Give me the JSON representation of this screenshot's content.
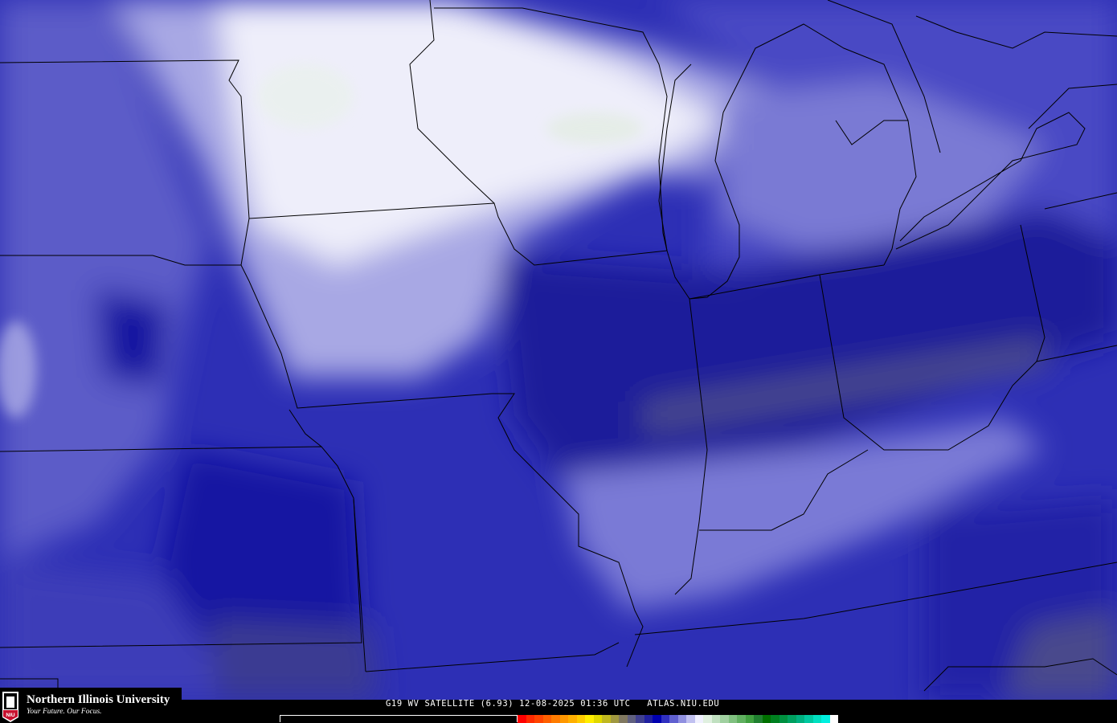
{
  "product": {
    "caption": "G19 WV SATELLITE (6.93) 12-08-2025 01:36 UTC   ATLAS.NIU.EDU"
  },
  "logo": {
    "name": "Northern Illinois University",
    "tagline": "Your Future. Our Focus.",
    "seal_text": "NIU"
  },
  "colorbar": {
    "colors": [
      "#ff0000",
      "#ff2a00",
      "#ff4400",
      "#ff6000",
      "#ff7c00",
      "#ff9800",
      "#ffb000",
      "#ffcc00",
      "#ffee00",
      "#e0d800",
      "#c0b820",
      "#a09840",
      "#807860",
      "#606080",
      "#404090",
      "#2020a0",
      "#0000b0",
      "#3030c0",
      "#6060d0",
      "#9090e0",
      "#c0c0f0",
      "#f0f0ff",
      "#e0f0e0",
      "#c0e0c0",
      "#a0d0a0",
      "#80c080",
      "#60b060",
      "#40a040",
      "#208030",
      "#007000",
      "#008020",
      "#009040",
      "#00a060",
      "#00b080",
      "#00c8a0",
      "#00e0c0",
      "#00f0e0",
      "#ffffff"
    ]
  },
  "map_colors": {
    "dry": "#1010a0",
    "moist": "#f0f0fa",
    "mid": "#6a6ad0",
    "very_dry": "#4a4a90"
  }
}
